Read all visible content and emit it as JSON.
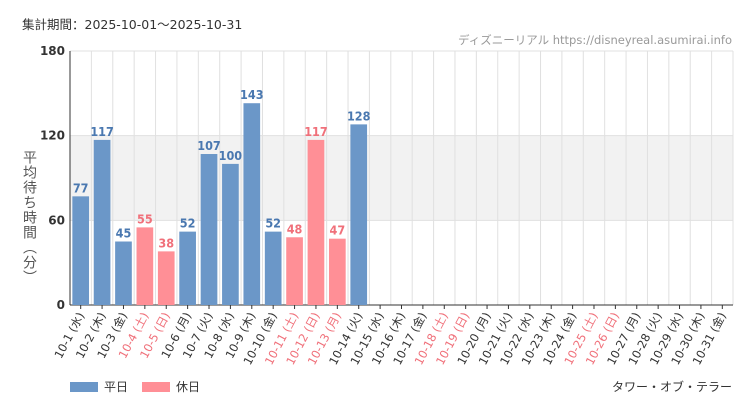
{
  "header": {
    "period_label": "集計期間：2025-10-01〜2025-10-31"
  },
  "source_label": "ディズニーリアル https://disneyreal.asumirai.info",
  "attraction": "タワー・オブ・テラー",
  "legend": {
    "weekday": "平日",
    "holiday": "休日"
  },
  "colors": {
    "weekday": "#6b97c8",
    "holiday": "#ff8f96",
    "weekday_label": "#4a78b0",
    "holiday_label": "#f0707a",
    "band": "#f2f2f2",
    "grid": "#e0e0e0",
    "axis": "#333333"
  },
  "chart_data": {
    "type": "bar",
    "ylabel": "平均待ち時間（分）",
    "ylim": [
      0,
      180
    ],
    "yticks": [
      0,
      60,
      120,
      180
    ],
    "shaded_band": [
      60,
      120
    ],
    "categories": [
      "10-1 (水)",
      "10-2 (木)",
      "10-3 (金)",
      "10-4 (土)",
      "10-5 (日)",
      "10-6 (月)",
      "10-7 (火)",
      "10-8 (水)",
      "10-9 (木)",
      "10-10 (金)",
      "10-11 (土)",
      "10-12 (日)",
      "10-13 (月)",
      "10-14 (火)",
      "10-15 (水)",
      "10-16 (木)",
      "10-17 (金)",
      "10-18 (土)",
      "10-19 (日)",
      "10-20 (月)",
      "10-21 (火)",
      "10-22 (水)",
      "10-23 (木)",
      "10-24 (金)",
      "10-25 (土)",
      "10-26 (日)",
      "10-27 (月)",
      "10-28 (火)",
      "10-29 (水)",
      "10-30 (木)",
      "10-31 (金)"
    ],
    "day_type": [
      "weekday",
      "weekday",
      "weekday",
      "holiday",
      "holiday",
      "weekday",
      "weekday",
      "weekday",
      "weekday",
      "weekday",
      "holiday",
      "holiday",
      "holiday",
      "weekday",
      "weekday",
      "weekday",
      "weekday",
      "holiday",
      "holiday",
      "weekday",
      "weekday",
      "weekday",
      "weekday",
      "weekday",
      "holiday",
      "holiday",
      "weekday",
      "weekday",
      "weekday",
      "weekday",
      "weekday"
    ],
    "values": [
      77,
      117,
      45,
      55,
      38,
      52,
      107,
      100,
      143,
      52,
      48,
      117,
      47,
      128,
      null,
      null,
      null,
      null,
      null,
      null,
      null,
      null,
      null,
      null,
      null,
      null,
      null,
      null,
      null,
      null,
      null
    ]
  }
}
